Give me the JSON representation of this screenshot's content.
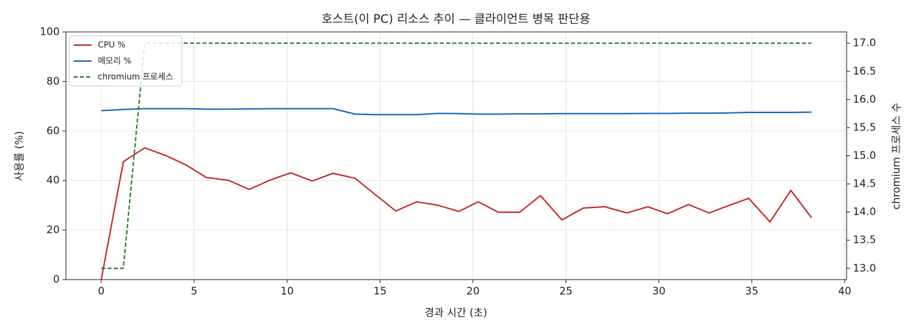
{
  "chart_data": {
    "type": "line",
    "title": "호스트(이 PC) 리소스 추이 — 클라이언트 병목 판단용",
    "x_label": "경과 시간 (초)",
    "y_label": "사용률 (%)",
    "y2_label": "chromium 프로세스 수",
    "x": [
      0,
      1.19,
      2.34,
      3.53,
      4.58,
      5.66,
      6.85,
      7.96,
      9.12,
      10.2,
      11.35,
      12.47,
      13.66,
      14.81,
      15.85,
      16.97,
      18.12,
      19.24,
      20.28,
      21.36,
      22.51,
      23.63,
      24.78,
      25.94,
      27.09,
      28.28,
      29.4,
      30.47,
      31.59,
      32.71,
      33.79,
      34.83,
      35.98,
      37.1,
      38.21
    ],
    "series": [
      {
        "name": "CPU %",
        "color": "#c62828",
        "linestyle": "solid",
        "axis": "y",
        "values": [
          0,
          47.6,
          53.2,
          49.9,
          46.2,
          41.2,
          40.1,
          36.4,
          40.3,
          43.1,
          39.8,
          42.9,
          40.9,
          33.9,
          27.7,
          31.4,
          30.0,
          27.5,
          31.4,
          27.2,
          27.2,
          33.9,
          24.1,
          28.9,
          29.4,
          26.9,
          29.4,
          26.6,
          30.3,
          26.9,
          30.0,
          32.8,
          23.3,
          36.0,
          25.0
        ]
      },
      {
        "name": "메모리 %",
        "color": "#1565c0",
        "linestyle": "solid",
        "axis": "y",
        "values": [
          68.2,
          68.7,
          69.0,
          69.0,
          69.0,
          68.8,
          68.8,
          68.9,
          69.0,
          69.0,
          69.0,
          69.0,
          66.8,
          66.6,
          66.6,
          66.6,
          67.1,
          67.0,
          66.8,
          66.8,
          66.9,
          66.9,
          67.0,
          67.0,
          67.0,
          67.0,
          67.1,
          67.1,
          67.2,
          67.2,
          67.3,
          67.5,
          67.5,
          67.5,
          67.6
        ]
      },
      {
        "name": "chromium 프로세스",
        "color": "#2e7d32",
        "linestyle": "dashed",
        "axis": "y2",
        "values": [
          13,
          13,
          17,
          17,
          17,
          17,
          17,
          17,
          17,
          17,
          17,
          17,
          17,
          17,
          17,
          17,
          17,
          17,
          17,
          17,
          17,
          17,
          17,
          17,
          17,
          17,
          17,
          17,
          17,
          17,
          17,
          17,
          17,
          17,
          17
        ]
      }
    ],
    "xlim": [
      -1.9,
      40.1
    ],
    "xticks": [
      0,
      5,
      10,
      15,
      20,
      25,
      30,
      35,
      40
    ],
    "ylim": [
      0,
      100
    ],
    "yticks": [
      0,
      20,
      40,
      60,
      80,
      100
    ],
    "y2lim": [
      12.8,
      17.2
    ],
    "y2ticks": [
      {
        "value": 13,
        "label": "13.0"
      },
      {
        "value": 13.5,
        "label": "13.5"
      },
      {
        "value": 14,
        "label": "14.0"
      },
      {
        "value": 14.5,
        "label": "14.5"
      },
      {
        "value": 15,
        "label": "15.0"
      },
      {
        "value": 15.5,
        "label": "15.5"
      },
      {
        "value": 16,
        "label": "16.0"
      },
      {
        "value": 16.5,
        "label": "16.5"
      },
      {
        "value": 17,
        "label": "17.0"
      }
    ],
    "grid": true,
    "legend": "upper left"
  }
}
